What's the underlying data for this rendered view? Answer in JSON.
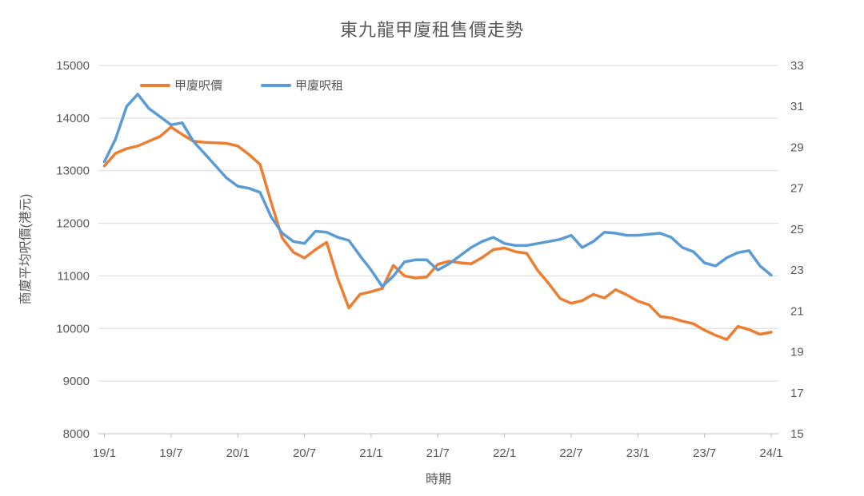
{
  "chart_data": {
    "type": "line",
    "title": "東九龍甲廈租售價走勢",
    "xlabel": "時期",
    "ylabel_left": "商廈平均呎價(港元)",
    "legend_position": "top-inside",
    "grid": true,
    "x_tick_labels": [
      "19/1",
      "19/7",
      "20/1",
      "20/7",
      "21/1",
      "21/7",
      "22/1",
      "22/7",
      "23/1",
      "23/7",
      "24/1"
    ],
    "left_axis": {
      "min": 8000,
      "max": 15000,
      "step": 1000,
      "tick_labels": [
        "15000",
        "14000",
        "13000",
        "12000",
        "11000",
        "10000",
        "9000",
        "8000"
      ]
    },
    "right_axis": {
      "min": 15,
      "max": 33,
      "step": 2,
      "tick_labels": [
        "33",
        "31",
        "29",
        "27",
        "25",
        "23",
        "21",
        "19",
        "17",
        "15"
      ]
    },
    "months": [
      "19/1",
      "19/2",
      "19/3",
      "19/4",
      "19/5",
      "19/6",
      "19/7",
      "19/8",
      "19/9",
      "19/10",
      "19/11",
      "19/12",
      "20/1",
      "20/2",
      "20/3",
      "20/4",
      "20/5",
      "20/6",
      "20/7",
      "20/8",
      "20/9",
      "20/10",
      "20/11",
      "20/12",
      "21/1",
      "21/2",
      "21/3",
      "21/4",
      "21/5",
      "21/6",
      "21/7",
      "21/8",
      "21/9",
      "21/10",
      "21/11",
      "21/12",
      "22/1",
      "22/2",
      "22/3",
      "22/4",
      "22/5",
      "22/6",
      "22/7",
      "22/8",
      "22/9",
      "22/10",
      "22/11",
      "22/12",
      "23/1",
      "23/2",
      "23/3",
      "23/4",
      "23/5",
      "23/6",
      "23/7",
      "23/8",
      "23/9",
      "23/10",
      "23/11",
      "23/12",
      "24/1"
    ],
    "legend": [
      {
        "name": "甲廈呎價",
        "color": "#ED7D31",
        "axis": "left"
      },
      {
        "name": "甲廈呎租",
        "color": "#5B9BD5",
        "axis": "right"
      }
    ],
    "series": [
      {
        "name": "甲廈呎價",
        "axis": "left",
        "color": "#ED7D31",
        "values": [
          13090,
          13330,
          13420,
          13470,
          13560,
          13650,
          13830,
          13690,
          13560,
          13540,
          13530,
          13520,
          13470,
          13310,
          13120,
          12400,
          11720,
          11450,
          11340,
          11500,
          11640,
          10950,
          10390,
          10650,
          10700,
          10760,
          11200,
          11000,
          10960,
          10980,
          11220,
          11280,
          11250,
          11230,
          11350,
          11500,
          11530,
          11460,
          11430,
          11100,
          10850,
          10570,
          10480,
          10530,
          10650,
          10580,
          10740,
          10640,
          10520,
          10450,
          10230,
          10200,
          10140,
          10090,
          9970,
          9870,
          9790,
          10040,
          9980,
          9890,
          9930
        ]
      },
      {
        "name": "甲廈呎租",
        "axis": "right",
        "color": "#5B9BD5",
        "values": [
          28.3,
          29.4,
          31.0,
          31.6,
          30.9,
          30.5,
          30.1,
          30.2,
          29.3,
          28.7,
          28.1,
          27.5,
          27.1,
          27.0,
          26.8,
          25.6,
          24.8,
          24.4,
          24.3,
          24.9,
          24.85,
          24.6,
          24.45,
          23.7,
          23.0,
          22.2,
          22.7,
          23.4,
          23.5,
          23.5,
          23.0,
          23.3,
          23.7,
          24.1,
          24.4,
          24.6,
          24.3,
          24.2,
          24.2,
          24.3,
          24.4,
          24.5,
          24.7,
          24.1,
          24.4,
          24.85,
          24.8,
          24.7,
          24.7,
          24.75,
          24.8,
          24.6,
          24.1,
          23.9,
          23.35,
          23.2,
          23.6,
          23.85,
          23.95,
          23.2,
          22.75
        ]
      }
    ]
  },
  "styles": {
    "text_color": "#595959",
    "gridline_color": "#D9D9D9",
    "axis_line_color": "#BFBFBF",
    "background": "#FFFFFF"
  }
}
